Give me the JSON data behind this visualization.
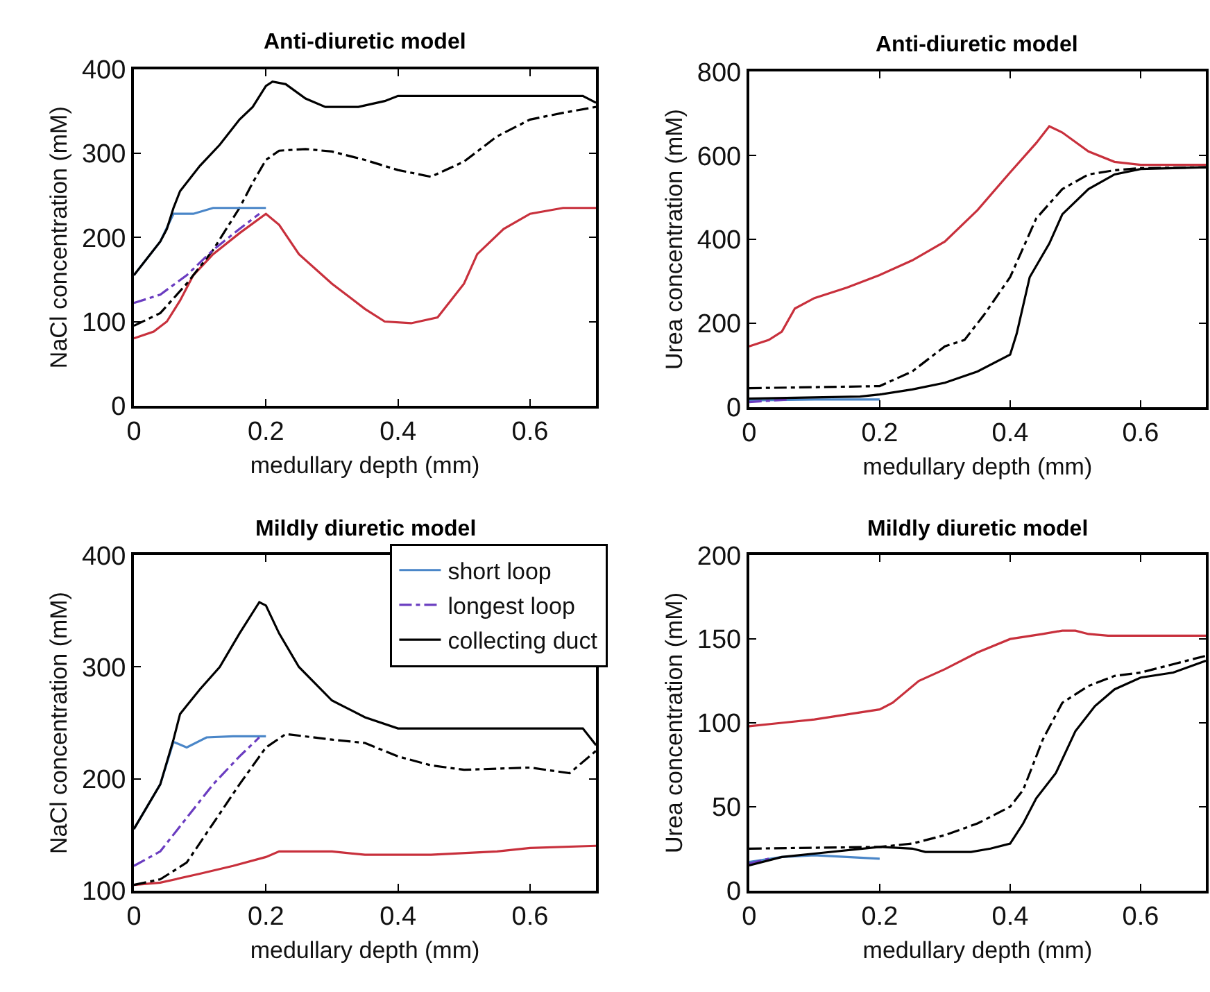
{
  "chart_data": [
    {
      "type": "line",
      "title": "Anti-diuretic model",
      "xlabel": "medullary depth (mm)",
      "ylabel": "NaCl concentration (mM)",
      "xlim": [
        0,
        0.7
      ],
      "xticks": [
        0,
        0.2,
        0.4,
        0.6
      ],
      "ylim": [
        0,
        400
      ],
      "yticks": [
        0,
        100,
        200,
        300,
        400
      ],
      "legend": false,
      "series": [
        {
          "color": "#c8303c",
          "line_style": "solid",
          "x": [
            0,
            0.03,
            0.05,
            0.07,
            0.09,
            0.12,
            0.16,
            0.2,
            0.22,
            0.25,
            0.3,
            0.35,
            0.38,
            0.42,
            0.46,
            0.5,
            0.52,
            0.56,
            0.6,
            0.65,
            0.7
          ],
          "values": [
            80,
            88,
            100,
            125,
            155,
            180,
            205,
            228,
            215,
            180,
            145,
            115,
            100,
            98,
            105,
            145,
            180,
            210,
            228,
            235,
            235
          ]
        },
        {
          "color": "#000000",
          "line_style": "dashdot",
          "x": [
            0,
            0.04,
            0.08,
            0.12,
            0.16,
            0.18,
            0.2,
            0.22,
            0.26,
            0.3,
            0.35,
            0.4,
            0.45,
            0.5,
            0.55,
            0.6,
            0.65,
            0.7
          ],
          "values": [
            95,
            110,
            145,
            185,
            235,
            265,
            292,
            303,
            305,
            302,
            292,
            280,
            272,
            290,
            320,
            340,
            348,
            355
          ]
        },
        {
          "color": "#4a86c8",
          "line_style": "solid",
          "x": [
            0,
            0.02,
            0.04,
            0.06,
            0.09,
            0.12,
            0.2
          ],
          "values": [
            155,
            175,
            195,
            228,
            228,
            235,
            235
          ]
        },
        {
          "color": "#6a3cc0",
          "line_style": "dashdot",
          "x": [
            0,
            0.04,
            0.08,
            0.12,
            0.16,
            0.19
          ],
          "values": [
            122,
            132,
            155,
            185,
            210,
            228
          ]
        },
        {
          "color": "#000000",
          "line_style": "solid",
          "x": [
            0,
            0.02,
            0.04,
            0.05,
            0.06,
            0.07,
            0.1,
            0.13,
            0.16,
            0.18,
            0.2,
            0.21,
            0.23,
            0.26,
            0.29,
            0.34,
            0.38,
            0.4,
            0.5,
            0.6,
            0.68,
            0.7
          ],
          "values": [
            155,
            175,
            195,
            210,
            235,
            255,
            285,
            310,
            340,
            355,
            380,
            385,
            382,
            365,
            355,
            355,
            362,
            368,
            368,
            368,
            368,
            360
          ]
        }
      ]
    },
    {
      "type": "line",
      "title": "Anti-diuretic model",
      "xlabel": "medullary depth (mm)",
      "ylabel": "Urea concentration (mM)",
      "xlim": [
        0,
        0.7
      ],
      "xticks": [
        0,
        0.2,
        0.4,
        0.6
      ],
      "ylim": [
        0,
        800
      ],
      "yticks": [
        0,
        200,
        400,
        600,
        800
      ],
      "legend": false,
      "series": [
        {
          "color": "#c8303c",
          "line_style": "solid",
          "x": [
            0,
            0.03,
            0.05,
            0.07,
            0.1,
            0.15,
            0.2,
            0.25,
            0.3,
            0.35,
            0.4,
            0.44,
            0.46,
            0.48,
            0.52,
            0.56,
            0.6,
            0.7
          ],
          "values": [
            145,
            160,
            180,
            235,
            260,
            285,
            315,
            350,
            395,
            470,
            560,
            630,
            670,
            655,
            610,
            585,
            578,
            578
          ]
        },
        {
          "color": "#000000",
          "line_style": "dashdot",
          "x": [
            0,
            0.2,
            0.25,
            0.3,
            0.33,
            0.36,
            0.4,
            0.44,
            0.48,
            0.52,
            0.56,
            0.6,
            0.7
          ],
          "values": [
            45,
            50,
            85,
            145,
            160,
            220,
            310,
            450,
            520,
            555,
            565,
            570,
            572
          ]
        },
        {
          "color": "#4a86c8",
          "line_style": "solid",
          "x": [
            0,
            0.1,
            0.2
          ],
          "values": [
            16,
            18,
            18
          ]
        },
        {
          "color": "#6a3cc0",
          "line_style": "dashdot",
          "x": [
            0,
            0.03,
            0.06
          ],
          "values": [
            12,
            15,
            18
          ]
        },
        {
          "color": "#000000",
          "line_style": "solid",
          "x": [
            0,
            0.17,
            0.2,
            0.25,
            0.3,
            0.35,
            0.4,
            0.41,
            0.43,
            0.46,
            0.48,
            0.52,
            0.56,
            0.6,
            0.7
          ],
          "values": [
            20,
            25,
            30,
            42,
            58,
            85,
            125,
            175,
            310,
            390,
            460,
            520,
            555,
            568,
            572
          ]
        }
      ]
    },
    {
      "type": "line",
      "title": "Mildly diuretic model",
      "xlabel": "medullary depth (mm)",
      "ylabel": "NaCl concentration (mM)",
      "xlim": [
        0,
        0.7
      ],
      "xticks": [
        0,
        0.2,
        0.4,
        0.6
      ],
      "ylim": [
        100,
        400
      ],
      "yticks": [
        100,
        200,
        300,
        400
      ],
      "legend": "top right",
      "series": [
        {
          "color": "#c8303c",
          "line_style": "solid",
          "x": [
            0,
            0.04,
            0.1,
            0.15,
            0.2,
            0.22,
            0.3,
            0.35,
            0.45,
            0.55,
            0.6,
            0.7
          ],
          "values": [
            105,
            107,
            115,
            122,
            130,
            135,
            135,
            132,
            132,
            135,
            138,
            140
          ]
        },
        {
          "color": "#000000",
          "line_style": "dashdot",
          "x": [
            0,
            0.04,
            0.08,
            0.12,
            0.16,
            0.2,
            0.23,
            0.3,
            0.35,
            0.4,
            0.45,
            0.5,
            0.6,
            0.66,
            0.7
          ],
          "values": [
            105,
            110,
            125,
            160,
            195,
            228,
            240,
            235,
            232,
            220,
            212,
            208,
            210,
            205,
            225
          ]
        },
        {
          "name": "short loop",
          "color": "#4a86c8",
          "line_style": "solid",
          "x": [
            0,
            0.02,
            0.04,
            0.06,
            0.08,
            0.11,
            0.15,
            0.2
          ],
          "values": [
            155,
            175,
            195,
            233,
            228,
            237,
            238,
            238
          ]
        },
        {
          "name": "longest loop",
          "color": "#6a3cc0",
          "line_style": "dashdot",
          "x": [
            0,
            0.04,
            0.08,
            0.12,
            0.16,
            0.19
          ],
          "values": [
            122,
            135,
            165,
            195,
            220,
            237
          ]
        },
        {
          "name": "collecting duct",
          "color": "#000000",
          "line_style": "solid",
          "x": [
            0,
            0.02,
            0.04,
            0.06,
            0.07,
            0.1,
            0.13,
            0.16,
            0.19,
            0.2,
            0.22,
            0.25,
            0.3,
            0.35,
            0.4,
            0.5,
            0.6,
            0.68,
            0.7
          ],
          "values": [
            155,
            175,
            195,
            235,
            258,
            280,
            300,
            330,
            358,
            355,
            330,
            300,
            270,
            255,
            245,
            245,
            245,
            245,
            230
          ]
        }
      ]
    },
    {
      "type": "line",
      "title": "Mildly diuretic model",
      "xlabel": "medullary depth (mm)",
      "ylabel": "Urea concentration (mM)",
      "xlim": [
        0,
        0.7
      ],
      "xticks": [
        0,
        0.2,
        0.4,
        0.6
      ],
      "ylim": [
        0,
        200
      ],
      "yticks": [
        0,
        50,
        100,
        150,
        200
      ],
      "legend": false,
      "series": [
        {
          "color": "#c8303c",
          "line_style": "solid",
          "x": [
            0,
            0.05,
            0.1,
            0.15,
            0.2,
            0.22,
            0.26,
            0.3,
            0.35,
            0.4,
            0.45,
            0.48,
            0.5,
            0.52,
            0.55,
            0.7
          ],
          "values": [
            98,
            100,
            102,
            105,
            108,
            112,
            125,
            132,
            142,
            150,
            153,
            155,
            155,
            153,
            152,
            152
          ]
        },
        {
          "color": "#000000",
          "line_style": "dashdot",
          "x": [
            0,
            0.2,
            0.25,
            0.3,
            0.35,
            0.4,
            0.42,
            0.45,
            0.48,
            0.52,
            0.56,
            0.6,
            0.65,
            0.7
          ],
          "values": [
            25,
            26,
            28,
            33,
            40,
            50,
            60,
            90,
            112,
            122,
            128,
            130,
            135,
            140
          ]
        },
        {
          "color": "#4a86c8",
          "line_style": "solid",
          "x": [
            0,
            0.05,
            0.1,
            0.2
          ],
          "values": [
            17,
            20,
            21,
            19
          ]
        },
        {
          "color": "#6a3cc0",
          "line_style": "dashdot",
          "x": [
            0,
            0.03
          ],
          "values": [
            16,
            19
          ]
        },
        {
          "color": "#000000",
          "line_style": "solid",
          "x": [
            0,
            0.05,
            0.1,
            0.2,
            0.25,
            0.27,
            0.34,
            0.37,
            0.4,
            0.42,
            0.44,
            0.47,
            0.5,
            0.53,
            0.56,
            0.6,
            0.65,
            0.7
          ],
          "values": [
            15,
            20,
            22,
            26,
            25,
            23,
            23,
            25,
            28,
            40,
            55,
            70,
            95,
            110,
            120,
            127,
            130,
            137
          ]
        }
      ]
    }
  ]
}
